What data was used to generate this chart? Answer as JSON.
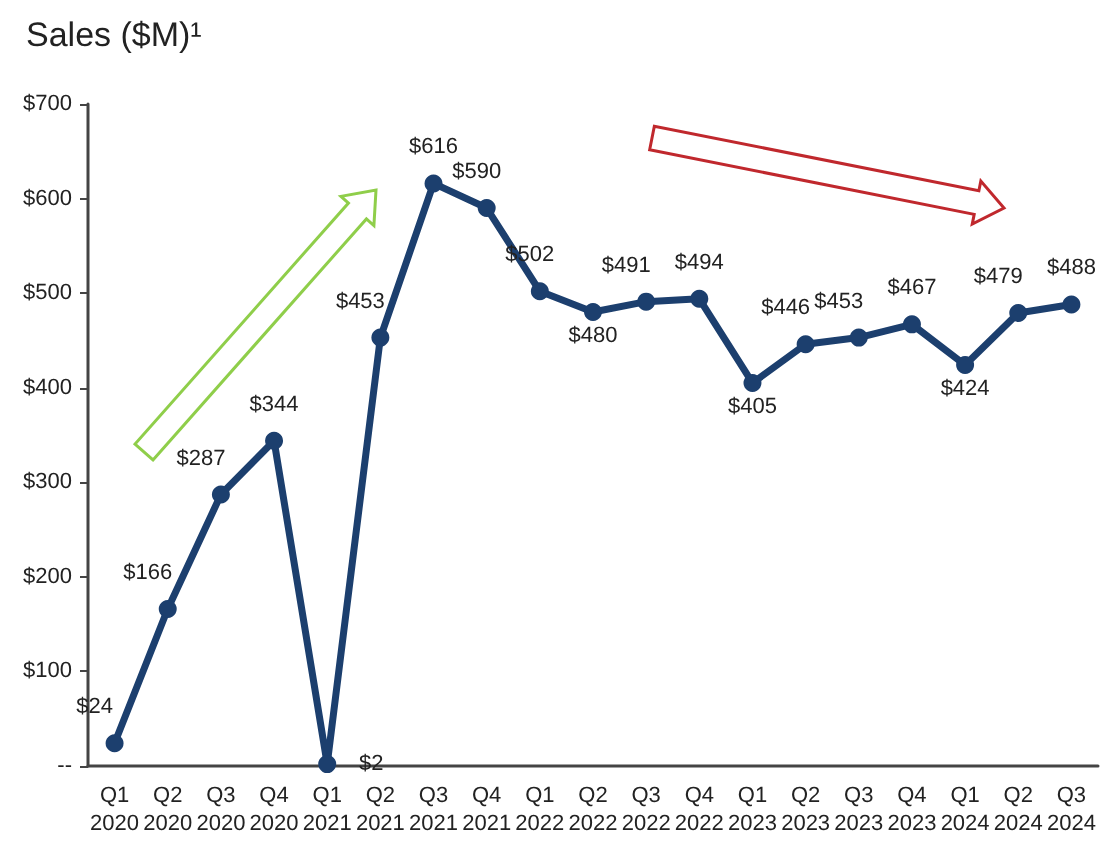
{
  "chart_data": {
    "type": "line",
    "title": "Sales ($M)¹",
    "categories": [
      "Q1\n2020",
      "Q2\n2020",
      "Q3\n2020",
      "Q4\n2020",
      "Q1\n2021",
      "Q2\n2021",
      "Q3\n2021",
      "Q4\n2021",
      "Q1\n2022",
      "Q2\n2022",
      "Q3\n2022",
      "Q4\n2022",
      "Q1\n2023",
      "Q2\n2023",
      "Q3\n2023",
      "Q4\n2023",
      "Q1\n2024",
      "Q2\n2024",
      "Q3\n2024"
    ],
    "series": [
      {
        "color": "#1c3f6e",
        "values": [
          24,
          166,
          287,
          344,
          2,
          453,
          616,
          590,
          502,
          480,
          491,
          494,
          405,
          446,
          453,
          467,
          424,
          479,
          488
        ],
        "value_labels": [
          "$24",
          "$166",
          "$287",
          "$344",
          "$2",
          "$453",
          "$616",
          "$590",
          "$502",
          "$480",
          "$491",
          "$494",
          "$405",
          "$446",
          "$453",
          "$467",
          "$424",
          "$479",
          "$488"
        ]
      }
    ],
    "ylim": [
      0,
      700
    ],
    "yticks": [
      {
        "value": 0,
        "label": "--"
      },
      {
        "value": 100,
        "label": "$100"
      },
      {
        "value": 200,
        "label": "$200"
      },
      {
        "value": 300,
        "label": "$300"
      },
      {
        "value": 400,
        "label": "$400"
      },
      {
        "value": 500,
        "label": "$500"
      },
      {
        "value": 600,
        "label": "$600"
      },
      {
        "value": 700,
        "label": "$700"
      }
    ],
    "grid": false,
    "marker": "circle",
    "line_style": "solid"
  }
}
